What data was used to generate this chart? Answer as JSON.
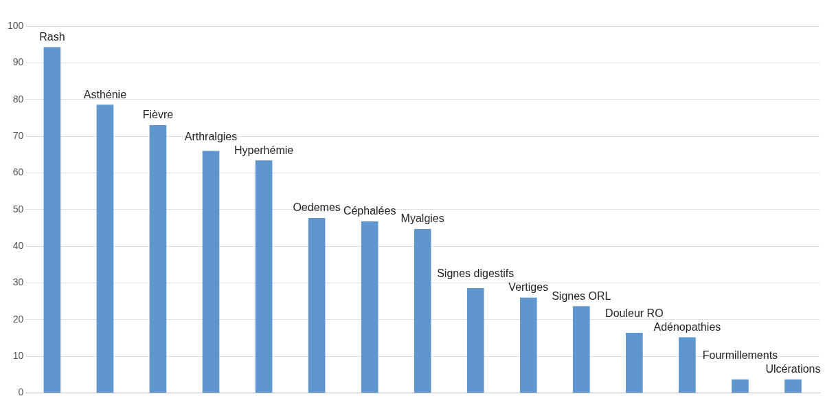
{
  "chart_data": {
    "type": "bar",
    "categories": [
      "Rash",
      "Asthénie",
      "Fièvre",
      "Arthralgies",
      "Hyperhémie",
      "Oedemes",
      "Céphalées",
      "Myalgies",
      "Signes digestifs",
      "Vertiges",
      "Signes ORL",
      "Douleur RO",
      "Adénopathies",
      "Fourmillements",
      "Ulcérations"
    ],
    "values": [
      94.3,
      78.6,
      73,
      66,
      63.4,
      47.7,
      46.8,
      44.7,
      28.6,
      26,
      23.7,
      16.4,
      15.2,
      3.7,
      3.7
    ],
    "color": "#5f96cd",
    "ylim": [
      0,
      100
    ],
    "yticks": [
      0,
      10,
      20,
      30,
      40,
      50,
      60,
      70,
      80,
      90,
      100
    ],
    "grid": "y",
    "tick_labels": "y"
  }
}
